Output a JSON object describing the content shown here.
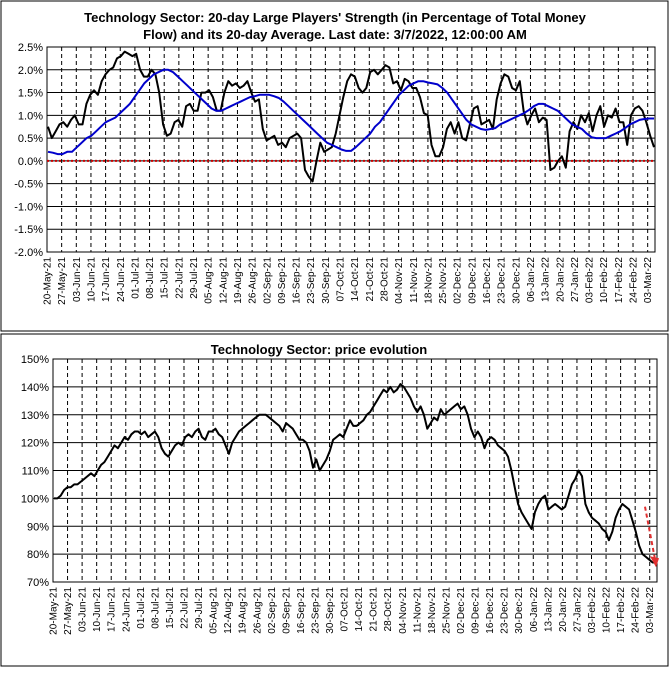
{
  "chart_data": [
    {
      "type": "line",
      "title_line1": "Technology Sector: 20-day Large Players' Strength (in Percentage of Total Money",
      "title_line2": "Flow) and its 20-day Average. Last date: 3/7/2022, 12:00:00 AM",
      "ylim": [
        -2.0,
        2.5
      ],
      "ytick_labels": [
        "2.5%",
        "2.0%",
        "1.5%",
        "1.0%",
        "0.5%",
        "0.0%",
        "-0.5%",
        "-1.0%",
        "-1.5%",
        "-2.0%"
      ],
      "x_labels": [
        "20-May-21",
        "27-May-21",
        "03-Jun-21",
        "10-Jun-21",
        "17-Jun-21",
        "24-Jun-21",
        "01-Jul-21",
        "08-Jul-21",
        "15-Jul-21",
        "22-Jul-21",
        "29-Jul-21",
        "05-Aug-21",
        "12-Aug-21",
        "19-Aug-21",
        "26-Aug-21",
        "02-Sep-21",
        "09-Sep-21",
        "16-Sep-21",
        "23-Sep-21",
        "30-Sep-21",
        "07-Oct-21",
        "14-Oct-21",
        "21-Oct-21",
        "28-Oct-21",
        "04-Nov-21",
        "11-Nov-21",
        "18-Nov-21",
        "25-Nov-21",
        "02-Dec-21",
        "09-Dec-21",
        "16-Dec-21",
        "23-Dec-21",
        "30-Dec-21",
        "06-Jan-22",
        "13-Jan-22",
        "20-Jan-22",
        "27-Jan-22",
        "03-Feb-22",
        "10-Feb-22",
        "17-Feb-22",
        "24-Feb-22",
        "03-Mar-22"
      ],
      "grid": true,
      "zero_line_color": "#cc0000",
      "series": [
        {
          "color": "#000000",
          "values": [
            0.75,
            0.5,
            0.65,
            0.8,
            0.85,
            0.75,
            0.9,
            1.0,
            0.8,
            0.8,
            1.25,
            1.45,
            1.55,
            1.45,
            1.75,
            1.9,
            2.0,
            2.05,
            2.25,
            2.3,
            2.4,
            2.35,
            2.3,
            2.35,
            2.0,
            1.85,
            1.85,
            2.0,
            1.9,
            1.5,
            0.8,
            0.55,
            0.6,
            0.85,
            0.9,
            0.75,
            1.2,
            1.25,
            1.1,
            1.1,
            1.5,
            1.5,
            1.55,
            1.4,
            1.1,
            1.1,
            1.5,
            1.75,
            1.65,
            1.7,
            1.6,
            1.65,
            1.75,
            1.5,
            1.3,
            1.35,
            0.7,
            0.45,
            0.5,
            0.55,
            0.35,
            0.4,
            0.3,
            0.5,
            0.55,
            0.6,
            0.5,
            -0.2,
            -0.35,
            -0.45,
            0.0,
            0.4,
            0.2,
            0.25,
            0.3,
            0.6,
            1.0,
            1.4,
            1.75,
            1.9,
            1.85,
            1.6,
            1.5,
            1.6,
            1.95,
            2.0,
            1.9,
            2.0,
            2.1,
            2.05,
            1.7,
            1.75,
            1.55,
            1.8,
            1.75,
            1.6,
            1.6,
            1.4,
            1.05,
            1.0,
            0.35,
            0.1,
            0.1,
            0.3,
            0.7,
            0.85,
            0.6,
            0.85,
            0.5,
            0.45,
            0.8,
            1.15,
            1.2,
            0.8,
            0.85,
            0.9,
            0.7,
            1.35,
            1.7,
            1.9,
            1.85,
            1.6,
            1.55,
            1.75,
            1.1,
            0.8,
            1.0,
            1.15,
            0.85,
            0.95,
            0.9,
            -0.2,
            -0.15,
            0.0,
            0.1,
            -0.15,
            0.65,
            0.85,
            0.7,
            1.0,
            0.85,
            1.05,
            0.65,
            1.0,
            1.2,
            0.75,
            1.0,
            0.95,
            1.15,
            0.85,
            0.85,
            0.35,
            1.0,
            1.15,
            1.2,
            1.1,
            0.85,
            0.55,
            0.3
          ]
        },
        {
          "color": "#0000cc",
          "values": [
            0.2,
            0.18,
            0.15,
            0.15,
            0.2,
            0.2,
            0.3,
            0.4,
            0.5,
            0.55,
            0.65,
            0.75,
            0.85,
            0.9,
            0.95,
            1.05,
            1.15,
            1.25,
            1.4,
            1.55,
            1.7,
            1.8,
            1.9,
            1.95,
            2.0,
            2.0,
            1.95,
            1.85,
            1.75,
            1.65,
            1.55,
            1.45,
            1.35,
            1.25,
            1.15,
            1.1,
            1.1,
            1.15,
            1.2,
            1.25,
            1.3,
            1.35,
            1.4,
            1.42,
            1.45,
            1.45,
            1.45,
            1.42,
            1.38,
            1.3,
            1.2,
            1.1,
            1.0,
            0.9,
            0.8,
            0.7,
            0.6,
            0.5,
            0.4,
            0.35,
            0.3,
            0.25,
            0.22,
            0.22,
            0.3,
            0.4,
            0.5,
            0.6,
            0.75,
            0.85,
            1.0,
            1.15,
            1.3,
            1.45,
            1.55,
            1.65,
            1.7,
            1.75,
            1.75,
            1.72,
            1.7,
            1.68,
            1.6,
            1.5,
            1.35,
            1.2,
            1.05,
            0.9,
            0.8,
            0.75,
            0.7,
            0.68,
            0.7,
            0.72,
            0.8,
            0.85,
            0.9,
            0.95,
            1.0,
            1.05,
            1.12,
            1.2,
            1.25,
            1.25,
            1.2,
            1.15,
            1.1,
            1.0,
            0.9,
            0.8,
            0.75,
            0.7,
            0.6,
            0.52,
            0.5,
            0.5,
            0.5,
            0.55,
            0.6,
            0.65,
            0.72,
            0.8,
            0.85,
            0.9,
            0.92,
            0.93,
            0.93
          ]
        }
      ]
    },
    {
      "type": "line",
      "title": "Technology Sector: price evolution",
      "ylim": [
        70,
        150
      ],
      "ytick_labels": [
        "150%",
        "140%",
        "130%",
        "120%",
        "110%",
        "100%",
        "90%",
        "80%",
        "70%"
      ],
      "x_labels": [
        "20-May-21",
        "27-May-21",
        "03-Jun-21",
        "10-Jun-21",
        "17-Jun-21",
        "24-Jun-21",
        "01-Jul-21",
        "08-Jul-21",
        "15-Jul-21",
        "22-Jul-21",
        "29-Jul-21",
        "05-Aug-21",
        "12-Aug-21",
        "19-Aug-21",
        "26-Aug-21",
        "02-Sep-21",
        "09-Sep-21",
        "16-Sep-21",
        "23-Sep-21",
        "30-Sep-21",
        "07-Oct-21",
        "14-Oct-21",
        "21-Oct-21",
        "28-Oct-21",
        "04-Nov-21",
        "11-Nov-21",
        "18-Nov-21",
        "25-Nov-21",
        "02-Dec-21",
        "09-Dec-21",
        "16-Dec-21",
        "23-Dec-21",
        "30-Dec-21",
        "06-Jan-22",
        "13-Jan-22",
        "20-Jan-22",
        "27-Jan-22",
        "03-Feb-22",
        "10-Feb-22",
        "17-Feb-22",
        "24-Feb-22",
        "03-Mar-22"
      ],
      "grid": true,
      "arrow_color": "#e03030",
      "series": [
        {
          "color": "#000000",
          "values": [
            100,
            100,
            101,
            103,
            104,
            104,
            105,
            105,
            106,
            107,
            108,
            109,
            108,
            110,
            112,
            113,
            115,
            117,
            119,
            118,
            120,
            122,
            121,
            123,
            124,
            124,
            123,
            124,
            122,
            123,
            124,
            122,
            118,
            116,
            115,
            117,
            119,
            120,
            119,
            122,
            123,
            122,
            124,
            125,
            122,
            121,
            124,
            124,
            125,
            123,
            122,
            119,
            116,
            120,
            122,
            124,
            125,
            126,
            127,
            128,
            129,
            130,
            130,
            130,
            129,
            128,
            127,
            126,
            124,
            127,
            126,
            125,
            123,
            121,
            121,
            120,
            117,
            111,
            114,
            110,
            112,
            114,
            117,
            121,
            122,
            123,
            122,
            125,
            128,
            126,
            126,
            127,
            128,
            130,
            131,
            133,
            135,
            137,
            139,
            138,
            140,
            138,
            139,
            141,
            140,
            138,
            136,
            133,
            131,
            133,
            130,
            125,
            127,
            129,
            128,
            132,
            130,
            131,
            132,
            133,
            134,
            132,
            133,
            130,
            125,
            122,
            124,
            122,
            118,
            121,
            122,
            121,
            119,
            118,
            117,
            115,
            110,
            104,
            98,
            95,
            93,
            91,
            89,
            95,
            98,
            100,
            101,
            96,
            97,
            98,
            97,
            96,
            97,
            101,
            105,
            107,
            110,
            108,
            98,
            95,
            93,
            92,
            91,
            89,
            88,
            85,
            88,
            93,
            96,
            98,
            97,
            96,
            92,
            88,
            83,
            80,
            79,
            78,
            77,
            77
          ]
        }
      ]
    }
  ]
}
